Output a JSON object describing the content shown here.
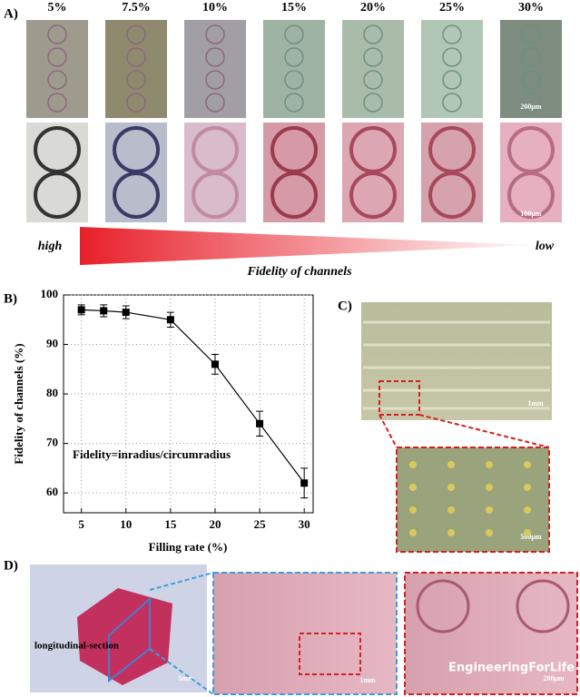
{
  "panel_a": {
    "label": "A)",
    "columns": [
      "5%",
      "7.5%",
      "10%",
      "15%",
      "20%",
      "25%",
      "30%"
    ],
    "scale_top": "200μm",
    "scale_bottom": "100μm",
    "gradient_left": "high",
    "gradient_right": "low",
    "gradient_caption": "Fidelity of channels"
  },
  "chart_data": {
    "type": "line",
    "panel_label": "B)",
    "annotation": "Fidelity=inradius/circumradius",
    "x_label": "Filling rate (%)",
    "y_label": "Fidelity of channels (%)",
    "x": [
      5,
      7.5,
      10,
      15,
      20,
      25,
      30
    ],
    "values": [
      97,
      96.8,
      96.5,
      95,
      86,
      74,
      62
    ],
    "errors": [
      1,
      1.2,
      1.3,
      1.5,
      2,
      2.5,
      3
    ],
    "color": "#000000",
    "xlim": [
      3,
      31
    ],
    "ylim": [
      56,
      100
    ],
    "xticks": [
      5,
      10,
      15,
      20,
      25,
      30
    ],
    "yticks": [
      60,
      70,
      80,
      90,
      100
    ],
    "grid": true
  },
  "panel_c": {
    "label": "C)",
    "scale_overview": "1mm",
    "scale_zoom": "500μm"
  },
  "panel_d": {
    "label": "D)",
    "section_label": "longitudinal-section",
    "scale_1": "5mm",
    "scale_2": "1mm",
    "scale_3": "200μm",
    "watermark": "EngineeringForLife"
  }
}
